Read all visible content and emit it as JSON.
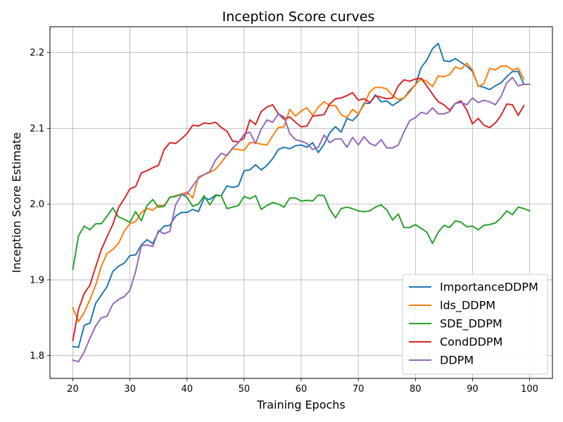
{
  "chart_data": {
    "type": "line",
    "title": "Inception Score curves",
    "xlabel": "Training Epochs",
    "ylabel": "Inception Score Estimate",
    "xlim": [
      16,
      104
    ],
    "ylim": [
      1.77,
      2.234
    ],
    "xticks": [
      20,
      30,
      40,
      50,
      60,
      70,
      80,
      90,
      100
    ],
    "yticks": [
      1.8,
      1.9,
      2.0,
      2.1,
      2.2
    ],
    "xtick_labels": [
      "20",
      "30",
      "40",
      "50",
      "60",
      "70",
      "80",
      "90",
      "100"
    ],
    "ytick_labels": [
      "1.8",
      "1.9",
      "2.0",
      "2.1",
      "2.2"
    ],
    "grid": true,
    "legend_position": "lower-right",
    "x_start": 20,
    "series": [
      {
        "name": "ImportanceDDPM",
        "color": "#1f77b4",
        "values": [
          1.812,
          1.811,
          1.84,
          1.843,
          1.869,
          1.88,
          1.891,
          1.911,
          1.918,
          1.922,
          1.932,
          1.933,
          1.946,
          1.953,
          1.948,
          1.963,
          1.971,
          1.972,
          1.984,
          1.989,
          1.989,
          1.993,
          1.99,
          2.008,
          2.006,
          2.012,
          2.011,
          2.024,
          2.022,
          2.024,
          2.044,
          2.045,
          2.052,
          2.045,
          2.051,
          2.06,
          2.072,
          2.075,
          2.073,
          2.077,
          2.078,
          2.075,
          2.081,
          2.068,
          2.079,
          2.094,
          2.102,
          2.095,
          2.113,
          2.11,
          2.118,
          2.133,
          2.133,
          2.144,
          2.135,
          2.136,
          2.13,
          2.135,
          2.14,
          2.15,
          2.157,
          2.18,
          2.19,
          2.205,
          2.212,
          2.189,
          2.188,
          2.192,
          2.187,
          2.182,
          2.175,
          2.156,
          2.154,
          2.151,
          2.156,
          2.16,
          2.168,
          2.175,
          2.175,
          2.158
        ]
      },
      {
        "name": "lds_DDPM",
        "color": "#ff7f0e",
        "values": [
          1.863,
          1.845,
          1.857,
          1.874,
          1.893,
          1.918,
          1.935,
          1.94,
          1.948,
          1.964,
          1.974,
          1.977,
          1.989,
          1.994,
          1.992,
          1.998,
          1.998,
          2.009,
          2.011,
          2.013,
          2.016,
          2.008,
          2.036,
          2.039,
          2.042,
          2.046,
          2.055,
          2.065,
          2.073,
          2.072,
          2.071,
          2.081,
          2.081,
          2.079,
          2.078,
          2.09,
          2.101,
          2.102,
          2.125,
          2.116,
          2.123,
          2.127,
          2.117,
          2.128,
          2.135,
          2.13,
          2.13,
          2.118,
          2.114,
          2.125,
          2.119,
          2.131,
          2.148,
          2.154,
          2.154,
          2.152,
          2.143,
          2.138,
          2.14,
          2.148,
          2.158,
          2.165,
          2.162,
          2.155,
          2.169,
          2.168,
          2.171,
          2.181,
          2.178,
          2.186,
          2.177,
          2.155,
          2.159,
          2.179,
          2.177,
          2.182,
          2.182,
          2.177,
          2.179,
          2.165
        ]
      },
      {
        "name": "SDE_DDPM",
        "color": "#2ca02c",
        "values": [
          1.914,
          1.958,
          1.971,
          1.966,
          1.974,
          1.974,
          1.984,
          1.995,
          1.983,
          1.98,
          1.976,
          1.99,
          1.978,
          1.998,
          2.006,
          1.996,
          1.997,
          2.009,
          2.01,
          2.013,
          2.009,
          1.997,
          2.0,
          2.011,
          1.999,
          2.011,
          2.011,
          1.994,
          1.996,
          1.998,
          2.01,
          2.007,
          2.011,
          1.993,
          1.998,
          2.002,
          2.0,
          1.996,
          2.008,
          2.008,
          2.004,
          2.005,
          2.004,
          2.012,
          2.011,
          1.993,
          1.982,
          1.994,
          1.996,
          1.994,
          1.991,
          1.99,
          1.991,
          1.996,
          1.999,
          1.992,
          1.979,
          1.987,
          1.969,
          1.969,
          1.973,
          1.968,
          1.963,
          1.948,
          1.963,
          1.972,
          1.969,
          1.978,
          1.976,
          1.97,
          1.971,
          1.966,
          1.972,
          1.973,
          1.975,
          1.982,
          1.991,
          1.986,
          1.996,
          1.994,
          1.991
        ]
      },
      {
        "name": "CondDDPM",
        "color": "#d62728",
        "values": [
          1.82,
          1.861,
          1.882,
          1.893,
          1.917,
          1.94,
          1.957,
          1.973,
          1.995,
          2.007,
          2.02,
          2.023,
          2.041,
          2.044,
          2.048,
          2.051,
          2.072,
          2.081,
          2.08,
          2.086,
          2.093,
          2.104,
          2.103,
          2.107,
          2.106,
          2.108,
          2.101,
          2.096,
          2.083,
          2.082,
          2.087,
          2.111,
          2.105,
          2.122,
          2.128,
          2.131,
          2.119,
          2.112,
          2.115,
          2.108,
          2.102,
          2.103,
          2.116,
          2.117,
          2.118,
          2.132,
          2.139,
          2.14,
          2.143,
          2.147,
          2.137,
          2.139,
          2.134,
          2.143,
          2.141,
          2.139,
          2.14,
          2.156,
          2.164,
          2.162,
          2.165,
          2.166,
          2.156,
          2.145,
          2.135,
          2.131,
          2.124,
          2.133,
          2.136,
          2.124,
          2.106,
          2.113,
          2.104,
          2.101,
          2.107,
          2.117,
          2.132,
          2.131,
          2.117,
          2.13
        ]
      },
      {
        "name": "DDPM",
        "color": "#9467bd",
        "values": [
          1.794,
          1.792,
          1.805,
          1.823,
          1.839,
          1.85,
          1.852,
          1.868,
          1.874,
          1.878,
          1.886,
          1.911,
          1.945,
          1.946,
          1.944,
          1.965,
          1.961,
          1.964,
          1.999,
          2.012,
          2.013,
          2.024,
          2.034,
          2.039,
          2.043,
          2.058,
          2.067,
          2.064,
          2.074,
          2.081,
          2.092,
          2.095,
          2.08,
          2.099,
          2.111,
          2.108,
          2.119,
          2.115,
          2.093,
          2.085,
          2.083,
          2.08,
          2.072,
          2.075,
          2.091,
          2.081,
          2.086,
          2.086,
          2.075,
          2.088,
          2.078,
          2.089,
          2.08,
          2.077,
          2.085,
          2.074,
          2.074,
          2.078,
          2.095,
          2.11,
          2.114,
          2.121,
          2.119,
          2.127,
          2.119,
          2.119,
          2.122,
          2.133,
          2.134,
          2.131,
          2.14,
          2.134,
          2.137,
          2.135,
          2.131,
          2.142,
          2.16,
          2.167,
          2.156,
          2.158,
          2.158
        ]
      }
    ]
  }
}
